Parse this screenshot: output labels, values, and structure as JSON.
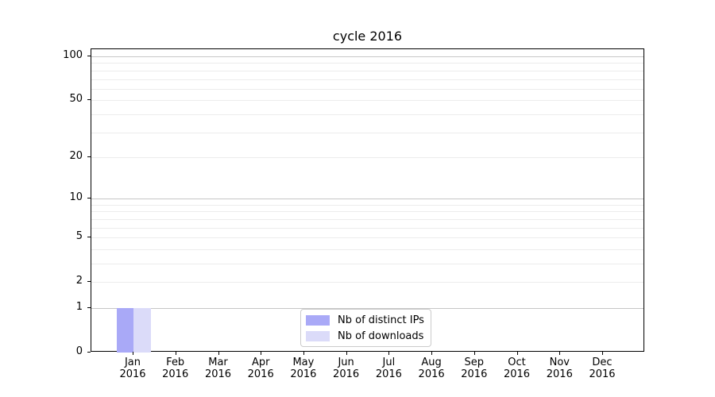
{
  "chart_data": {
    "type": "bar",
    "title": "cycle 2016",
    "x_tick_labels": [
      [
        "Jan",
        "2016"
      ],
      [
        "Feb",
        "2016"
      ],
      [
        "Mar",
        "2016"
      ],
      [
        "Apr",
        "2016"
      ],
      [
        "May",
        "2016"
      ],
      [
        "Jun",
        "2016"
      ],
      [
        "Jul",
        "2016"
      ],
      [
        "Aug",
        "2016"
      ],
      [
        "Sep",
        "2016"
      ],
      [
        "Oct",
        "2016"
      ],
      [
        "Nov",
        "2016"
      ],
      [
        "Dec",
        "2016"
      ]
    ],
    "series": [
      {
        "name": "Nb of distinct IPs",
        "color": "#a9a9f7",
        "values": [
          1,
          0,
          0,
          0,
          0,
          0,
          0,
          0,
          0,
          0,
          0,
          0
        ]
      },
      {
        "name": "Nb of downloads",
        "color": "#dbdbf9",
        "values": [
          1,
          0,
          0,
          0,
          0,
          0,
          0,
          0,
          0,
          0,
          0,
          0
        ]
      }
    ],
    "y_axis": {
      "scale": "log1p",
      "ylim": [
        0,
        112
      ],
      "ticks": [
        {
          "value": 0,
          "label": "0"
        },
        {
          "value": 1,
          "label": "1"
        },
        {
          "value": 2,
          "label": "2"
        },
        {
          "value": 5,
          "label": "5"
        },
        {
          "value": 10,
          "label": "10"
        },
        {
          "value": 20,
          "label": "20"
        },
        {
          "value": 50,
          "label": "50"
        },
        {
          "value": 100,
          "label": "100"
        }
      ],
      "major_gridlines": [
        1,
        10,
        100
      ],
      "minor_gridlines": [
        2,
        3,
        4,
        5,
        6,
        7,
        8,
        9,
        20,
        30,
        40,
        50,
        60,
        70,
        80,
        90
      ]
    },
    "legend": {
      "position": "lower center",
      "entries": [
        "Nb of distinct IPs",
        "Nb of downloads"
      ]
    },
    "grid": true
  },
  "colors": {
    "bar_distinct_ips": "#a9a9f7",
    "bar_downloads": "#dbdbf9",
    "grid_major": "#c6c6c6",
    "grid_minor": "#ececec",
    "axis": "#000000",
    "legend_border": "#cbcbcb"
  }
}
